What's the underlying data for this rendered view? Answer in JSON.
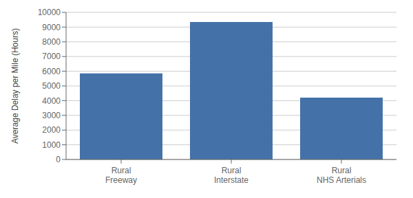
{
  "chart_data": {
    "type": "bar",
    "categories": [
      "Rural\nFreeway",
      "Rural\nInterstate",
      "Rural\nNHS Arterials"
    ],
    "values": [
      5850,
      9350,
      4200
    ],
    "color": "#4472a8",
    "ylabel": "Average Delay per Mile (Hours)",
    "ylim": [
      0,
      10000
    ],
    "yticks": [
      0,
      1000,
      2000,
      3000,
      4000,
      5000,
      6000,
      7000,
      8000,
      9000,
      10000
    ],
    "grid": true
  }
}
